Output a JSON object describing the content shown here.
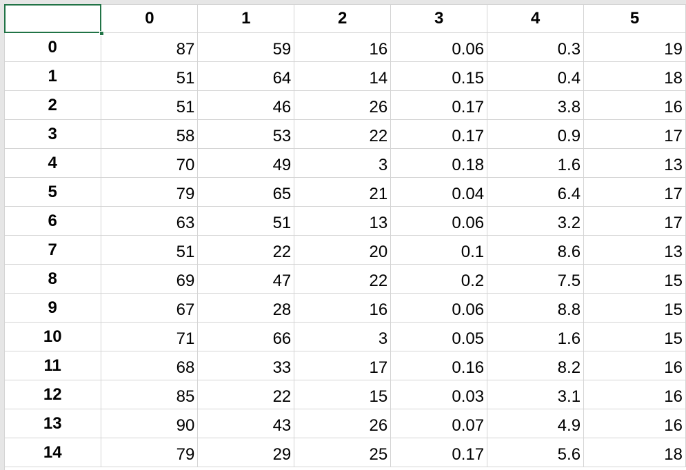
{
  "sheet": {
    "column_headers": [
      "",
      "0",
      "1",
      "2",
      "3",
      "4",
      "5"
    ],
    "rows": [
      {
        "label": "0",
        "cells": [
          "87",
          "59",
          "16",
          "0.06",
          "0.3",
          "19"
        ]
      },
      {
        "label": "1",
        "cells": [
          "51",
          "64",
          "14",
          "0.15",
          "0.4",
          "18"
        ]
      },
      {
        "label": "2",
        "cells": [
          "51",
          "46",
          "26",
          "0.17",
          "3.8",
          "16"
        ]
      },
      {
        "label": "3",
        "cells": [
          "58",
          "53",
          "22",
          "0.17",
          "0.9",
          "17"
        ]
      },
      {
        "label": "4",
        "cells": [
          "70",
          "49",
          "3",
          "0.18",
          "1.6",
          "13"
        ]
      },
      {
        "label": "5",
        "cells": [
          "79",
          "65",
          "21",
          "0.04",
          "6.4",
          "17"
        ]
      },
      {
        "label": "6",
        "cells": [
          "63",
          "51",
          "13",
          "0.06",
          "3.2",
          "17"
        ]
      },
      {
        "label": "7",
        "cells": [
          "51",
          "22",
          "20",
          "0.1",
          "8.6",
          "13"
        ]
      },
      {
        "label": "8",
        "cells": [
          "69",
          "47",
          "22",
          "0.2",
          "7.5",
          "15"
        ]
      },
      {
        "label": "9",
        "cells": [
          "67",
          "28",
          "16",
          "0.06",
          "8.8",
          "15"
        ]
      },
      {
        "label": "10",
        "cells": [
          "71",
          "66",
          "3",
          "0.05",
          "1.6",
          "15"
        ]
      },
      {
        "label": "11",
        "cells": [
          "68",
          "33",
          "17",
          "0.16",
          "8.2",
          "16"
        ]
      },
      {
        "label": "12",
        "cells": [
          "85",
          "22",
          "15",
          "0.03",
          "3.1",
          "16"
        ]
      },
      {
        "label": "13",
        "cells": [
          "90",
          "43",
          "26",
          "0.07",
          "4.9",
          "16"
        ]
      },
      {
        "label": "14",
        "cells": [
          "79",
          "29",
          "25",
          "0.17",
          "5.6",
          "18"
        ]
      }
    ]
  },
  "colors": {
    "gridline": "#d4d4d4",
    "selection": "#217346",
    "text": "#000000"
  }
}
